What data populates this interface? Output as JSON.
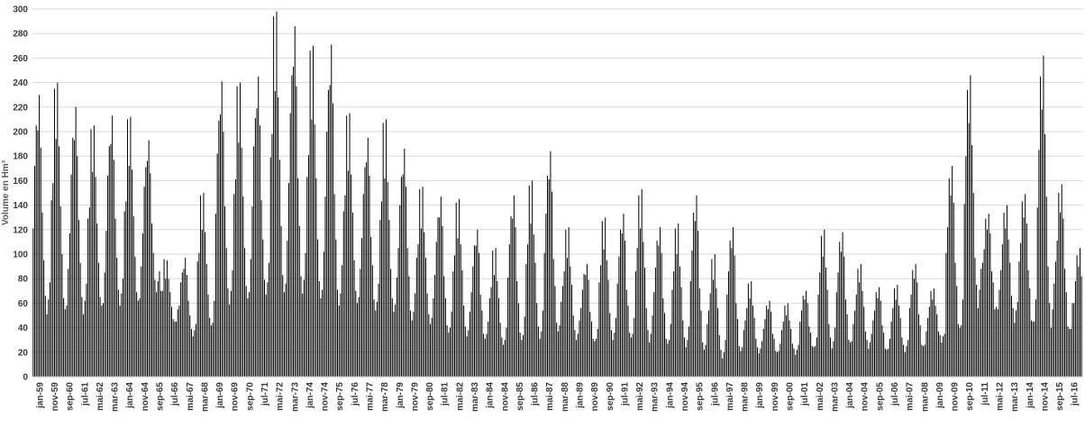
{
  "chart_data": {
    "type": "bar",
    "ylabel": "Volume en Hm³",
    "ylim": [
      0,
      300
    ],
    "ytick_step": 20,
    "grid": true,
    "legend": "none",
    "colors": {
      "bar": "#000000",
      "grid": "#d9d9d9",
      "axis": "#bfbfbf"
    },
    "x_tick_labels": [
      "jan-59",
      "nov-59",
      "sep-60",
      "jul-61",
      "mai-62",
      "mar-63",
      "jan-64",
      "nov-64",
      "sep-65",
      "jul-66",
      "mai-67",
      "mar-68",
      "jan-69",
      "nov-69",
      "sep-70",
      "jul-71",
      "mai-72",
      "mar-73",
      "jan-74",
      "nov-74",
      "sep-75",
      "jul-76",
      "mai-77",
      "mar-78",
      "jan-79",
      "nov-79",
      "sep-80",
      "jul-81",
      "mai-82",
      "mar-83",
      "jan-84",
      "nov-84",
      "sep-85",
      "jul-86",
      "mai-87",
      "mar-88",
      "jan-89",
      "nov-89",
      "sep-90",
      "jul-91",
      "mai-92",
      "mar-93",
      "jan-94",
      "nov-94",
      "sep-95",
      "jul-96",
      "mai-97",
      "mar-98",
      "jan-99",
      "nov-99",
      "sep-00",
      "jul-01",
      "mai-02",
      "mar-03",
      "jan-04",
      "nov-04",
      "sep-05",
      "jul-06",
      "mai-07",
      "mar-08",
      "jan-09",
      "nov-09",
      "sep-10",
      "jul-11",
      "mai-12",
      "mar-13",
      "jan-14",
      "nov-14",
      "sep-15",
      "jul-16"
    ],
    "x_tick_every": 10,
    "x_start": "jan-59",
    "cycle_peaks": [
      230,
      240,
      220,
      205,
      213,
      212,
      193,
      95,
      97,
      150,
      241,
      240,
      245,
      298,
      286,
      270,
      271,
      215,
      195,
      210,
      186,
      155,
      147,
      145,
      120,
      105,
      148,
      160,
      184,
      122,
      92,
      130,
      133,
      153,
      122,
      125,
      148,
      100,
      122,
      78,
      62,
      60,
      70,
      120,
      118,
      92,
      73,
      75,
      92,
      72,
      172,
      246,
      133,
      140,
      149,
      262,
      157,
      105
    ],
    "cycle_bases": [
      48,
      48,
      48,
      52,
      55,
      56,
      66,
      42,
      32,
      38,
      55,
      58,
      62,
      62,
      62,
      58,
      52,
      55,
      50,
      48,
      42,
      40,
      32,
      30,
      28,
      24,
      26,
      28,
      32,
      28,
      26,
      28,
      28,
      26,
      24,
      22,
      18,
      14,
      18,
      18,
      18,
      18,
      22,
      22,
      24,
      22,
      20,
      20,
      22,
      28,
      35,
      55,
      52,
      45,
      40,
      38,
      34,
      24
    ],
    "values": []
  }
}
